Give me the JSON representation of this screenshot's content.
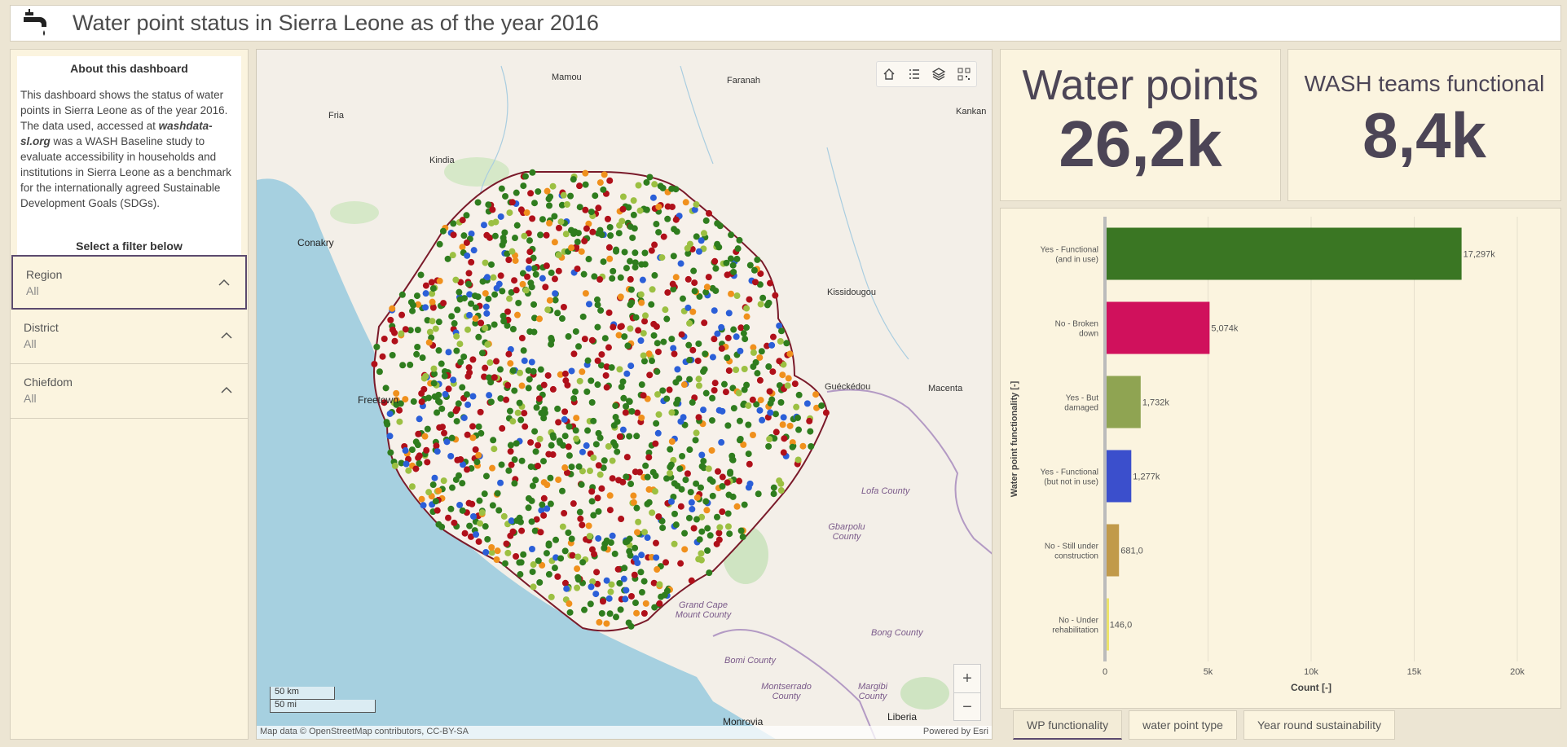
{
  "header": {
    "title": "Water point status in Sierra Leone as of the year 2016",
    "icon": "water-tap-icon"
  },
  "about": {
    "title": "About this dashboard",
    "text_1": "This dashboard shows the status of water points in Sierra Leone as of the year 2016.  The data used, accessed at ",
    "link": "washdata-sl.org",
    "text_2": " was a WASH Baseline study to evaluate accessibility in households and institutions in Sierra Leone as a benchmark for the internationally agreed Sustainable Development Goals (SDGs).",
    "select_label": "Select a filter below"
  },
  "filters": [
    {
      "label": "Region",
      "value": "All"
    },
    {
      "label": "District",
      "value": "All"
    },
    {
      "label": "Chiefdom",
      "value": "All"
    }
  ],
  "map": {
    "places": [
      "Mamou",
      "Faranah",
      "Fria",
      "Kindia",
      "Kankan",
      "Conakry",
      "Kissidougou",
      "Guéckédou",
      "Macenta",
      "Freetown",
      "Lofa County",
      "Gbarpolu County",
      "Grand Cape Mount County",
      "Bong County",
      "Bomi County",
      "Montserrado County",
      "Margibi County",
      "Monrovia",
      "Liberia"
    ],
    "scale_km": "50 km",
    "scale_mi": "50 mi",
    "attribution": "Map data © OpenStreetMap contributors, CC-BY-SA",
    "powered": "Powered by Esri",
    "zoom_in": "+",
    "zoom_out": "−"
  },
  "indicators": [
    {
      "label": "Water points",
      "value": "26,2k"
    },
    {
      "label": "WASH teams functional",
      "value": "8,4k"
    }
  ],
  "chart_data": {
    "type": "bar",
    "orientation": "horizontal",
    "categories": [
      [
        "Yes - Functional",
        "(and in use)"
      ],
      [
        "No - Broken",
        "down"
      ],
      [
        "Yes - But",
        "damaged"
      ],
      [
        "Yes - Functional",
        "(but not in use)"
      ],
      [
        "No - Still under",
        "construction"
      ],
      [
        "No - Under",
        "rehabilitation"
      ]
    ],
    "values": [
      17297,
      5074,
      1732,
      1277,
      681,
      146
    ],
    "value_labels": [
      "17,297k",
      "5,074k",
      "1,732k",
      "1,277k",
      "681,0",
      "146,0"
    ],
    "colors": [
      "#3a7623",
      "#d0115c",
      "#8fa452",
      "#3b4fcc",
      "#c19a4a",
      "#ece36a"
    ],
    "xlabel": "Count [-]",
    "ylabel": "Water point functionality [-]",
    "xlim": [
      0,
      20000
    ],
    "xticks": [
      0,
      5000,
      10000,
      15000,
      20000
    ],
    "xtick_labels": [
      "0",
      "5k",
      "10k",
      "15k",
      "20k"
    ],
    "grid": true
  },
  "tabs": [
    "WP functionality",
    "water point type",
    "Year round sustainability"
  ]
}
